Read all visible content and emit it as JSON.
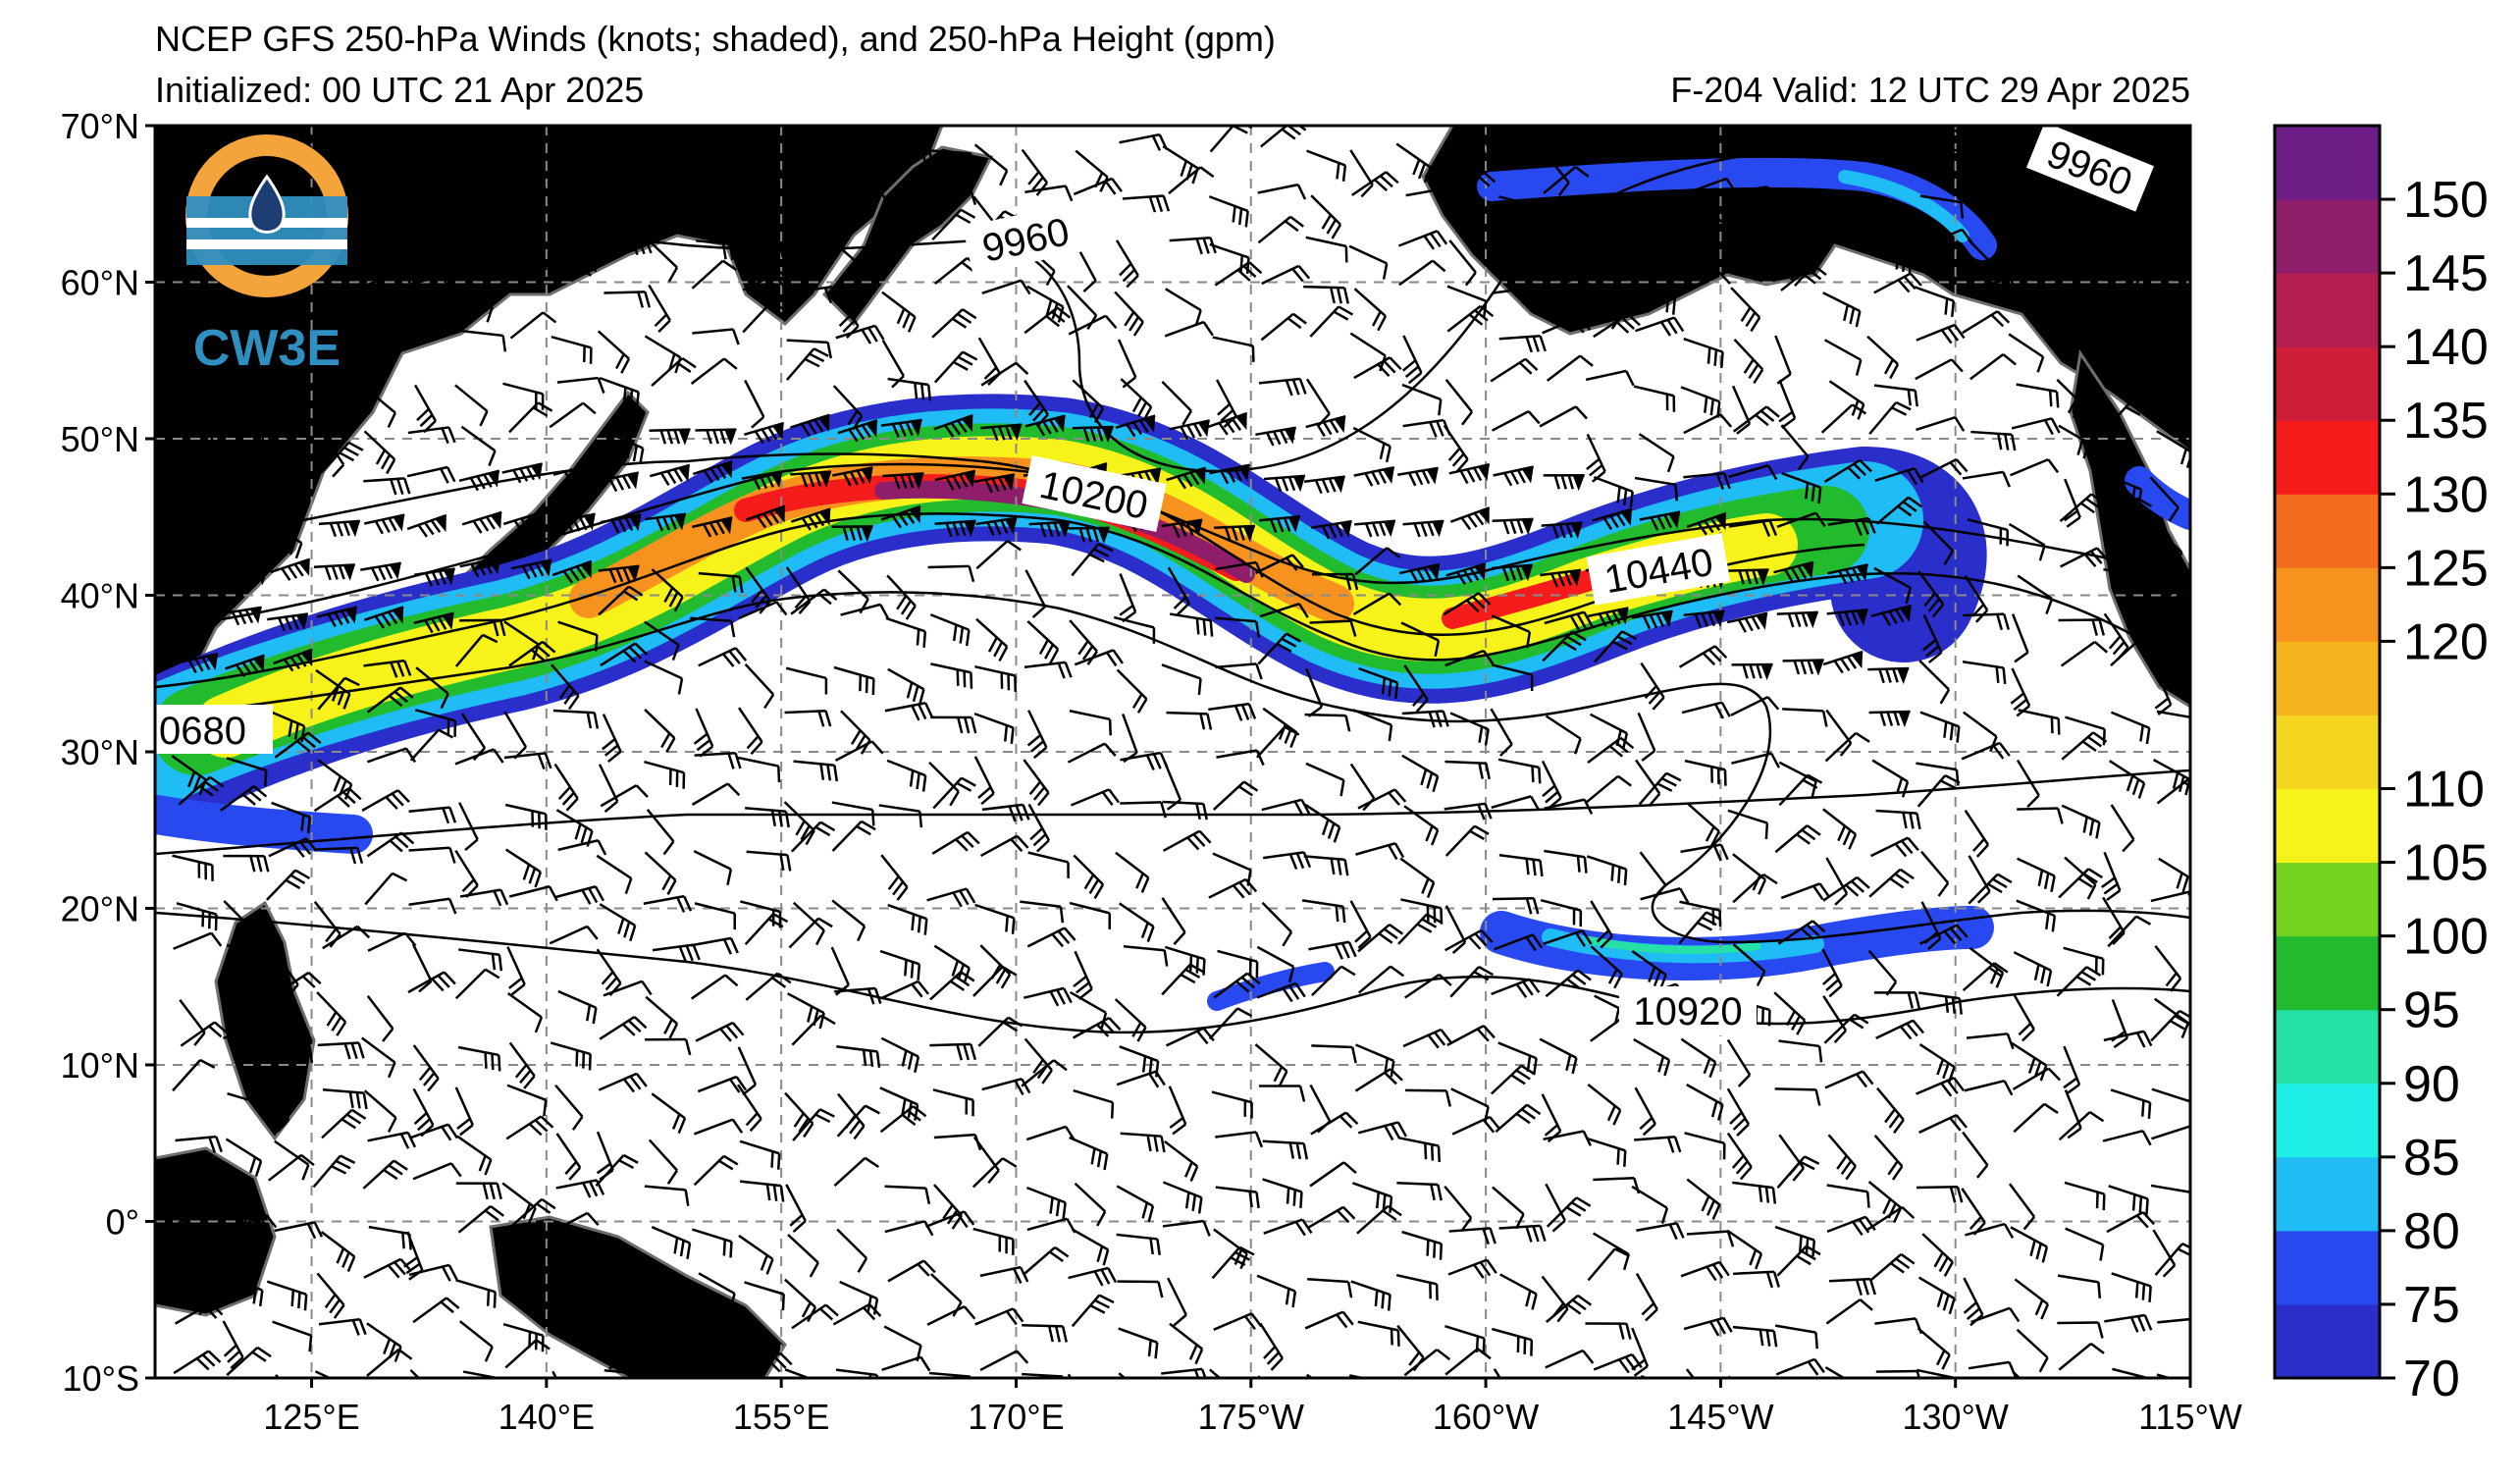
{
  "header": {
    "title": "NCEP GFS 250-hPa Winds (knots; shaded), and 250-hPa Height (gpm)",
    "initialized": "Initialized: 00 UTC 21 Apr 2025",
    "valid": "F-204  Valid: 12 UTC 29 Apr 2025"
  },
  "logo": {
    "text": "CW3E",
    "icon": "water-drop-logo-icon",
    "colors": {
      "orange": "#f3a43a",
      "blue": "#2f8fc0",
      "navy": "#1d3d73"
    }
  },
  "map": {
    "lon_labels": [
      "125°E",
      "140°E",
      "155°E",
      "170°E",
      "175°W",
      "160°W",
      "145°W",
      "130°W",
      "115°W"
    ],
    "lat_labels": [
      "70°N",
      "60°N",
      "50°N",
      "40°N",
      "30°N",
      "20°N",
      "10°N",
      "0°",
      "10°S"
    ],
    "contour_labels": [
      "9960",
      "9960",
      "10200",
      "10440",
      "0680",
      "10920"
    ],
    "land_color": "#e4e4e4",
    "coast_color": "#6e6e6e",
    "grid_style": "dashed"
  },
  "colorbar": {
    "units": "knots",
    "levels": [
      70,
      75,
      80,
      85,
      90,
      95,
      100,
      105,
      110,
      115,
      120,
      125,
      130,
      135,
      140,
      145,
      150,
      155
    ],
    "tick_labels": [
      "70",
      "75",
      "80",
      "85",
      "90",
      "95",
      "100",
      "105",
      "110",
      "120",
      "125",
      "130",
      "135",
      "140",
      "145",
      "150"
    ],
    "colors": [
      "#2a2fcc",
      "#2849f0",
      "#1fbcf5",
      "#1fefe6",
      "#25e1a6",
      "#22bb2d",
      "#73d11f",
      "#f6f21a",
      "#f4d51f",
      "#f6b51e",
      "#f8921e",
      "#f46c1e",
      "#f61c1c",
      "#cf1e3a",
      "#b21e52",
      "#8f1e6a",
      "#6d1e86"
    ]
  }
}
